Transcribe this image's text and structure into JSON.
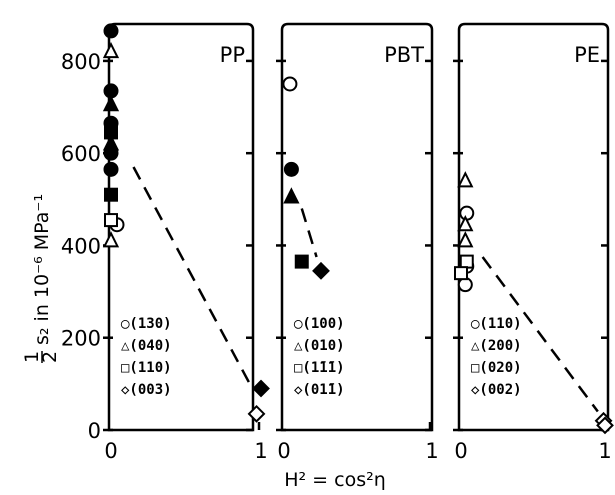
{
  "figure": {
    "ylabel_frac": "1",
    "ylabel_frac_den": "2",
    "ylabel_text": "s₂ in 10⁻⁶ MPa⁻¹",
    "xlabel": "H² = cos²η",
    "yticks": [
      "0",
      "200",
      "400",
      "600",
      "800"
    ]
  },
  "chart_data": [
    {
      "type": "scatter",
      "title": "PP",
      "xticks": [
        "0",
        "1"
      ],
      "xlim": [
        0,
        1
      ],
      "ylim": [
        0,
        880
      ],
      "legend": [
        "◯(130)",
        "△(040)",
        "□(110)",
        "◇(003)"
      ],
      "series": [
        {
          "name": "(130)",
          "marker": "circle",
          "points": [
            {
              "x": 0,
              "y": 865,
              "filled": true
            },
            {
              "x": 0,
              "y": 735,
              "filled": true
            },
            {
              "x": 0,
              "y": 665,
              "filled": true
            },
            {
              "x": 0,
              "y": 600,
              "filled": true
            },
            {
              "x": 0,
              "y": 565,
              "filled": true
            },
            {
              "x": 0.04,
              "y": 445,
              "filled": false
            }
          ]
        },
        {
          "name": "(040)",
          "marker": "triangle",
          "points": [
            {
              "x": 0,
              "y": 820,
              "filled": false
            },
            {
              "x": 0,
              "y": 705,
              "filled": true
            },
            {
              "x": 0,
              "y": 620,
              "filled": true
            },
            {
              "x": 0,
              "y": 410,
              "filled": false
            }
          ]
        },
        {
          "name": "(110)",
          "marker": "square",
          "points": [
            {
              "x": 0,
              "y": 645,
              "filled": true
            },
            {
              "x": 0,
              "y": 510,
              "filled": true
            },
            {
              "x": 0,
              "y": 455,
              "filled": false
            }
          ]
        },
        {
          "name": "(003)",
          "marker": "diamond",
          "points": [
            {
              "x": 1.0,
              "y": 90,
              "filled": true
            },
            {
              "x": 0.97,
              "y": 35,
              "filled": false
            }
          ]
        }
      ],
      "trend": [
        [
          0.15,
          570
        ],
        [
          0.95,
          85
        ]
      ]
    },
    {
      "type": "scatter",
      "title": "PBT",
      "xticks": [
        "0",
        "1"
      ],
      "xlim": [
        0,
        1
      ],
      "ylim": [
        0,
        880
      ],
      "legend": [
        "◯(100)",
        "△(010)",
        "□(1̄1̄1)",
        "◇(01̄1)"
      ],
      "series": [
        {
          "name": "(100)",
          "marker": "circle",
          "points": [
            {
              "x": 0.04,
              "y": 750,
              "filled": false
            },
            {
              "x": 0.05,
              "y": 565,
              "filled": true
            }
          ]
        },
        {
          "name": "(010)",
          "marker": "triangle",
          "points": [
            {
              "x": 0.05,
              "y": 505,
              "filled": true
            }
          ]
        },
        {
          "name": "(1̄1̄1)",
          "marker": "square",
          "points": [
            {
              "x": 0.12,
              "y": 365,
              "filled": true
            }
          ]
        },
        {
          "name": "(01̄1)",
          "marker": "diamond",
          "points": [
            {
              "x": 0.25,
              "y": 345,
              "filled": true
            }
          ]
        }
      ],
      "trend": [
        [
          0.12,
          480
        ],
        [
          0.22,
          375
        ]
      ]
    },
    {
      "type": "scatter",
      "title": "PE",
      "xticks": [
        "0",
        "1"
      ],
      "xlim": [
        0,
        1
      ],
      "ylim": [
        0,
        880
      ],
      "legend": [
        "◯(110)",
        "△(200)",
        "□(020)",
        "◇(002)"
      ],
      "series": [
        {
          "name": "(110)",
          "marker": "circle",
          "points": [
            {
              "x": 0.04,
              "y": 470,
              "filled": false
            },
            {
              "x": 0.04,
              "y": 355,
              "filled": false
            },
            {
              "x": 0.03,
              "y": 315,
              "filled": false
            }
          ]
        },
        {
          "name": "(200)",
          "marker": "triangle",
          "points": [
            {
              "x": 0.03,
              "y": 540,
              "filled": false
            },
            {
              "x": 0.03,
              "y": 445,
              "filled": false
            },
            {
              "x": 0.03,
              "y": 410,
              "filled": false
            }
          ]
        },
        {
          "name": "(020)",
          "marker": "square",
          "points": [
            {
              "x": 0.04,
              "y": 365,
              "filled": false
            },
            {
              "x": 0.0,
              "y": 340,
              "filled": false
            }
          ]
        },
        {
          "name": "(002)",
          "marker": "diamond",
          "points": [
            {
              "x": 0.99,
              "y": 20,
              "filled": false
            },
            {
              "x": 1.0,
              "y": 10,
              "filled": false
            }
          ]
        }
      ],
      "trend": [
        [
          0.15,
          375
        ],
        [
          0.95,
          40
        ]
      ]
    }
  ]
}
